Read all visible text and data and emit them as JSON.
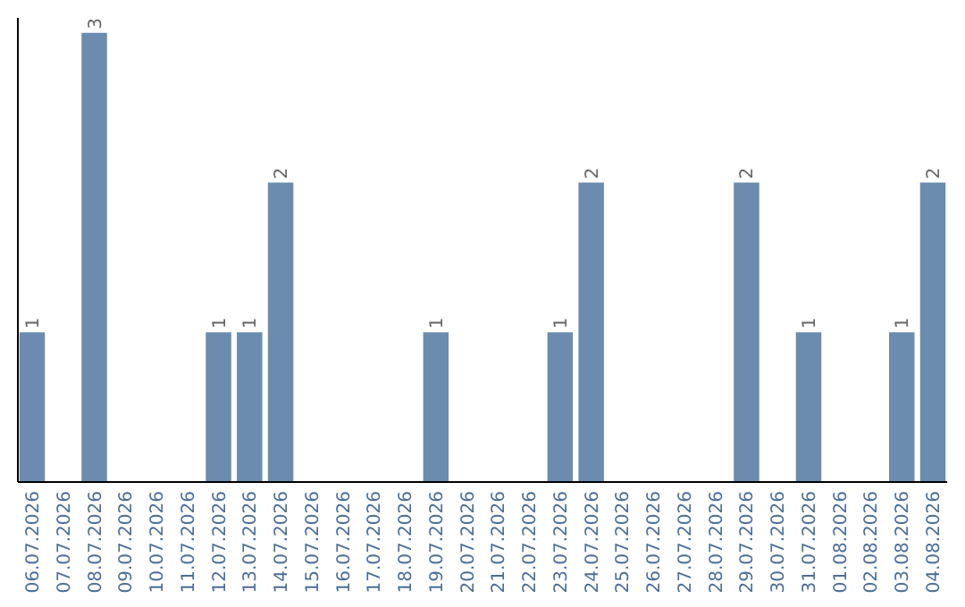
{
  "chart_data": {
    "type": "bar",
    "categories": [
      "06.07.2026",
      "07.07.2026",
      "08.07.2026",
      "09.07.2026",
      "10.07.2026",
      "11.07.2026",
      "12.07.2026",
      "13.07.2026",
      "14.07.2026",
      "15.07.2026",
      "16.07.2026",
      "17.07.2026",
      "18.07.2026",
      "19.07.2026",
      "20.07.2026",
      "21.07.2026",
      "22.07.2026",
      "23.07.2026",
      "24.07.2026",
      "25.07.2026",
      "26.07.2026",
      "27.07.2026",
      "28.07.2026",
      "29.07.2026",
      "30.07.2026",
      "31.07.2026",
      "01.08.2026",
      "02.08.2026",
      "03.08.2026",
      "04.08.2026"
    ],
    "values": [
      1,
      0,
      3,
      0,
      0,
      0,
      1,
      1,
      2,
      0,
      0,
      0,
      0,
      1,
      0,
      0,
      0,
      1,
      2,
      0,
      0,
      0,
      0,
      2,
      0,
      1,
      0,
      0,
      1,
      2
    ],
    "value_labels": [
      "1",
      null,
      "3",
      null,
      null,
      null,
      "1",
      "1",
      "2",
      null,
      null,
      null,
      null,
      "1",
      null,
      null,
      null,
      "1",
      "2",
      null,
      null,
      null,
      null,
      "2",
      null,
      "1",
      null,
      null,
      "1",
      "2"
    ],
    "color": "#6b8cae",
    "ylim": [
      0,
      3.1
    ],
    "tick_labels": "x"
  }
}
